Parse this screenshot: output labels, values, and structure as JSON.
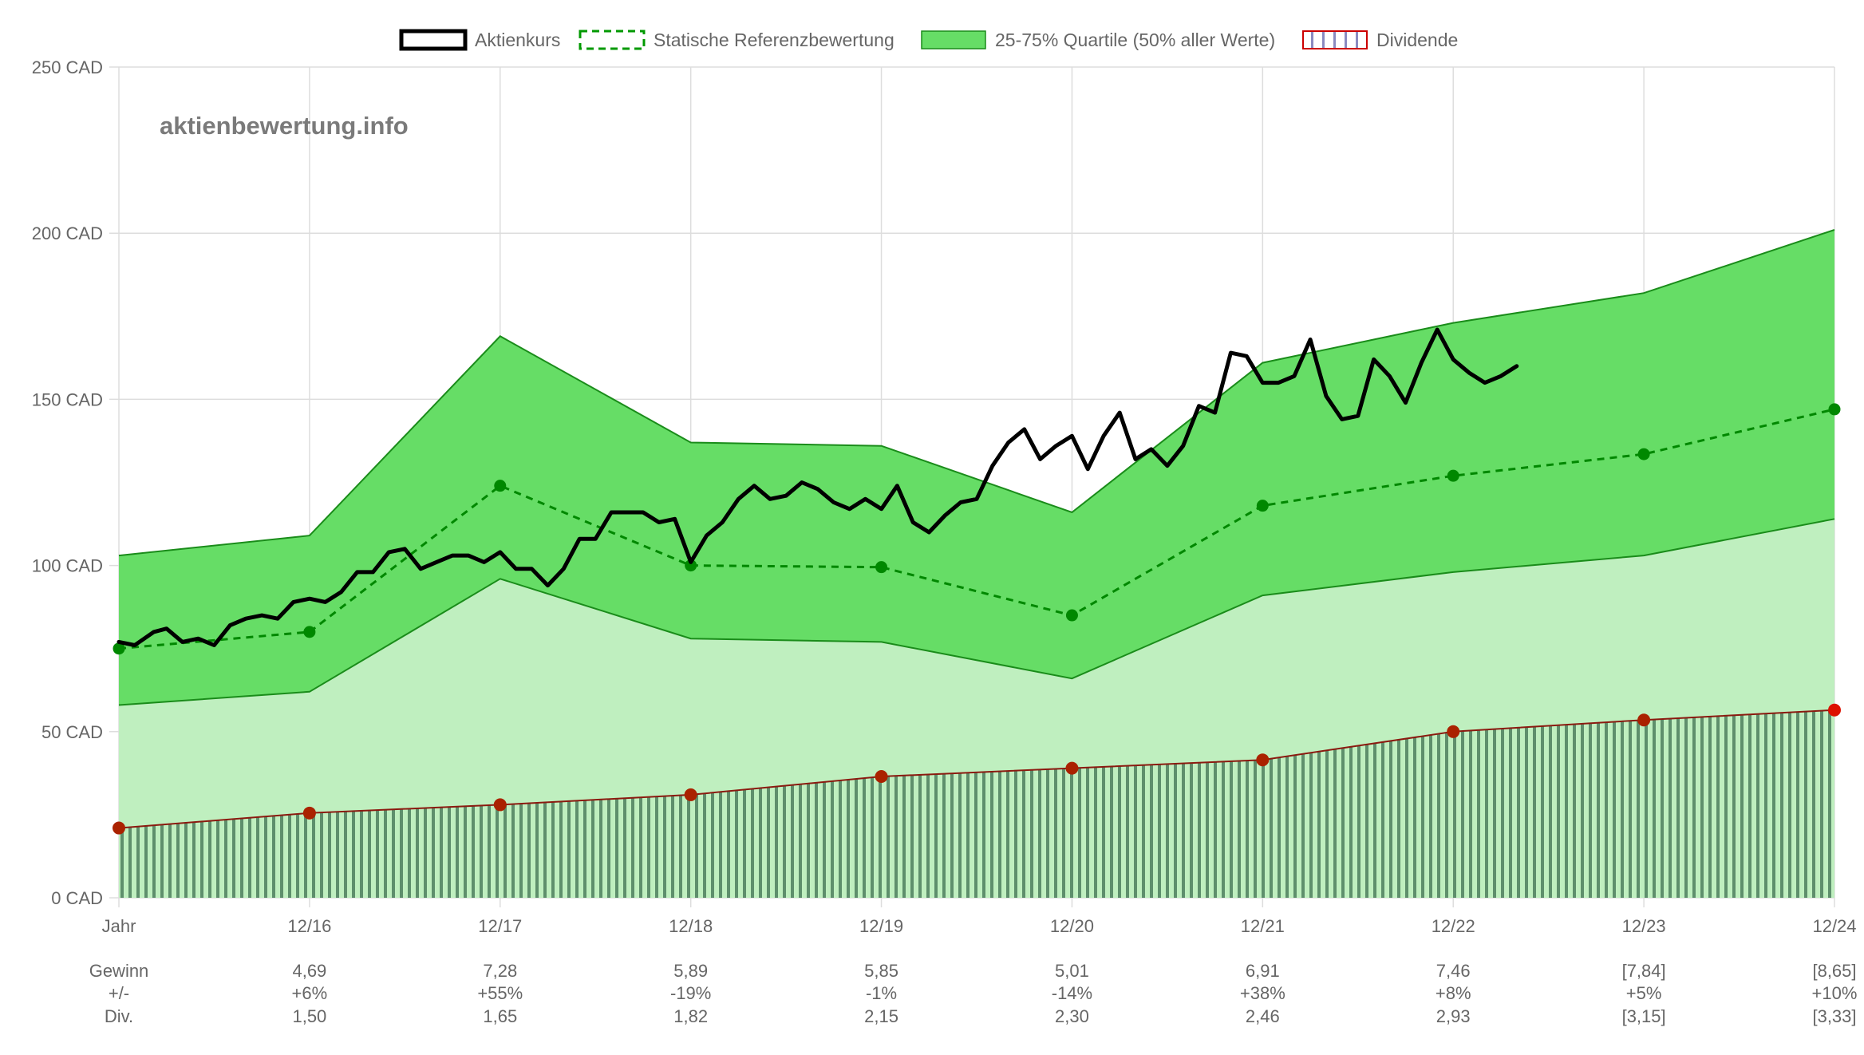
{
  "watermark": "aktienbewertung.info",
  "legend": [
    {
      "label": "Aktienkurs",
      "kind": "line-solid",
      "color": "#000000"
    },
    {
      "label": "Statische Referenzbewertung",
      "kind": "line-dashed",
      "color": "#009900"
    },
    {
      "label": "25-75% Quartile (50% aller Werte)",
      "kind": "area",
      "color": "#66dd66"
    },
    {
      "label": "Dividende",
      "kind": "hatch",
      "color": "#cc0000"
    }
  ],
  "chart_data": {
    "type": "line",
    "y_ticks": [
      "0 CAD",
      "50 CAD",
      "100 CAD",
      "150 CAD",
      "200 CAD",
      "250 CAD"
    ],
    "ylim": [
      0,
      250
    ],
    "x_tick_labels": [
      "Jahr",
      "12/16",
      "12/17",
      "12/18",
      "12/19",
      "12/20",
      "12/21",
      "12/22",
      "12/23",
      "12/24"
    ],
    "xlim": [
      2015.917,
      2024.917
    ],
    "grid": true,
    "legend_position": "top",
    "colors": {
      "price": "#000000",
      "reference": "#008800",
      "quartile_fill": "#66dd66",
      "lower_fill": "#bfefbf",
      "dividend_marker": "#bb2200",
      "dividend_hatch": "#5a8a6a"
    },
    "quartile_x": [
      2015.917,
      2016.917,
      2017.917,
      2018.917,
      2019.917,
      2020.917,
      2021.917,
      2022.917,
      2023.917,
      2024.917
    ],
    "quartile_upper": [
      103,
      109,
      169,
      137,
      136,
      116,
      161,
      173,
      182,
      201
    ],
    "quartile_lower": [
      58,
      62,
      96,
      78,
      77,
      66,
      91,
      98,
      103,
      114
    ],
    "reference_x": [
      2015.917,
      2016.917,
      2017.917,
      2018.917,
      2019.917,
      2020.917,
      2021.917,
      2022.917,
      2023.917,
      2024.917
    ],
    "reference_values": [
      75,
      80,
      124,
      100,
      99.5,
      85,
      118,
      127,
      133.5,
      147
    ],
    "dividend_x": [
      2015.917,
      2016.917,
      2017.917,
      2018.917,
      2019.917,
      2020.917,
      2021.917,
      2022.917,
      2023.917,
      2024.917
    ],
    "dividend_values": [
      21,
      25.5,
      28,
      31,
      36.5,
      39,
      41.5,
      50,
      53.5,
      56.5
    ],
    "price_series": {
      "name": "Aktienkurs",
      "x": [
        2015.917,
        2016.0,
        2016.1,
        2016.167,
        2016.25,
        2016.333,
        2016.417,
        2016.5,
        2016.583,
        2016.667,
        2016.75,
        2016.833,
        2016.917,
        2017.0,
        2017.083,
        2017.167,
        2017.25,
        2017.333,
        2017.417,
        2017.5,
        2017.583,
        2017.667,
        2017.75,
        2017.833,
        2017.917,
        2018.0,
        2018.083,
        2018.167,
        2018.25,
        2018.333,
        2018.417,
        2018.5,
        2018.583,
        2018.667,
        2018.75,
        2018.833,
        2018.917,
        2019.0,
        2019.083,
        2019.167,
        2019.25,
        2019.333,
        2019.417,
        2019.5,
        2019.583,
        2019.667,
        2019.75,
        2019.833,
        2019.917,
        2020.0,
        2020.083,
        2020.167,
        2020.25,
        2020.333,
        2020.417,
        2020.5,
        2020.583,
        2020.667,
        2020.75,
        2020.833,
        2020.917,
        2021.0,
        2021.083,
        2021.167,
        2021.25,
        2021.333,
        2021.417,
        2021.5,
        2021.583,
        2021.667,
        2021.75,
        2021.833,
        2021.917,
        2022.0,
        2022.083,
        2022.167,
        2022.25,
        2022.333,
        2022.417,
        2022.5,
        2022.583,
        2022.667,
        2022.75,
        2022.833,
        2022.917,
        2023.0,
        2023.083,
        2023.167,
        2023.25
      ],
      "values": [
        77,
        76,
        80,
        81,
        77,
        78,
        76,
        82,
        84,
        85,
        84,
        89,
        90,
        89,
        92,
        98,
        98,
        104,
        105,
        99,
        101,
        103,
        103,
        101,
        104,
        99,
        99,
        94,
        99,
        108,
        108,
        116,
        116,
        116,
        113,
        114,
        101,
        109,
        113,
        120,
        124,
        120,
        121,
        125,
        123,
        119,
        117,
        120,
        117,
        124,
        113,
        110,
        115,
        119,
        120,
        130,
        137,
        141,
        132,
        136,
        139,
        129,
        139,
        146,
        132,
        135,
        130,
        136,
        148,
        146,
        164,
        163,
        155,
        155,
        157,
        168,
        151,
        144,
        145,
        162,
        157,
        149,
        161,
        171,
        162,
        158,
        155,
        157,
        160
      ]
    },
    "table": {
      "row_labels": [
        "Gewinn",
        "+/-",
        "Div."
      ],
      "columns": [
        {
          "gewinn": "4,69",
          "change": "+6%",
          "div": "1,50"
        },
        {
          "gewinn": "7,28",
          "change": "+55%",
          "div": "1,65"
        },
        {
          "gewinn": "5,89",
          "change": "-19%",
          "div": "1,82"
        },
        {
          "gewinn": "5,85",
          "change": "-1%",
          "div": "2,15"
        },
        {
          "gewinn": "5,01",
          "change": "-14%",
          "div": "2,30"
        },
        {
          "gewinn": "6,91",
          "change": "+38%",
          "div": "2,46"
        },
        {
          "gewinn": "7,46",
          "change": "+8%",
          "div": "2,93"
        },
        {
          "gewinn": "[7,84]",
          "change": "+5%",
          "div": "[3,15]"
        },
        {
          "gewinn": "[8,65]",
          "change": "+10%",
          "div": "[3,33]"
        }
      ]
    }
  }
}
